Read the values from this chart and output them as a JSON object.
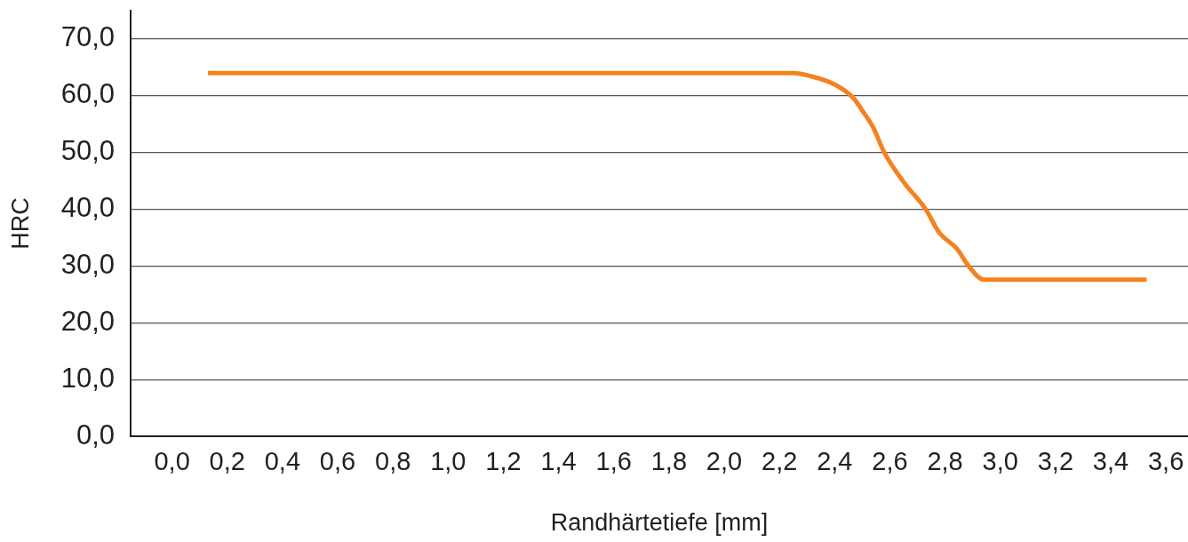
{
  "chart_data": {
    "type": "line",
    "xlabel": "Randhärtetiefe [mm]",
    "ylabel": "HRC",
    "x": [
      0.13,
      2.25,
      2.31,
      2.4,
      2.47,
      2.5,
      2.54,
      2.58,
      2.65,
      2.73,
      2.78,
      2.84,
      2.89,
      2.94,
      3.53
    ],
    "series": [
      {
        "color": "#f58220",
        "values": [
          64,
          64,
          63.5,
          62,
          59.5,
          57.4,
          54.4,
          50,
          44.8,
          40,
          35.8,
          33.2,
          29.7,
          27.6,
          27.6
        ]
      }
    ],
    "xlim": [
      -0.15,
      3.68
    ],
    "xticks": [
      {
        "value": 0,
        "label": "0,0"
      },
      {
        "value": 0.2,
        "label": "0,2"
      },
      {
        "value": 0.4,
        "label": "0,4"
      },
      {
        "value": 0.6,
        "label": "0,6"
      },
      {
        "value": 0.8,
        "label": "0,8"
      },
      {
        "value": 1,
        "label": "1,0"
      },
      {
        "value": 1.2,
        "label": "1,2"
      },
      {
        "value": 1.4,
        "label": "1,4"
      },
      {
        "value": 1.6,
        "label": "1,6"
      },
      {
        "value": 1.8,
        "label": "1,8"
      },
      {
        "value": 2,
        "label": "2,0"
      },
      {
        "value": 2.2,
        "label": "2,2"
      },
      {
        "value": 2.4,
        "label": "2,4"
      },
      {
        "value": 2.6,
        "label": "2,6"
      },
      {
        "value": 2.8,
        "label": "2,8"
      },
      {
        "value": 3,
        "label": "3,0"
      },
      {
        "value": 3.2,
        "label": "3,2"
      },
      {
        "value": 3.4,
        "label": "3,4"
      },
      {
        "value": 3.6,
        "label": "3,6"
      }
    ],
    "ylim": [
      0,
      75
    ],
    "yticks": [
      {
        "value": 0,
        "label": "0,0"
      },
      {
        "value": 10,
        "label": "10,0"
      },
      {
        "value": 20,
        "label": "20,0"
      },
      {
        "value": 30,
        "label": "30,0"
      },
      {
        "value": 40,
        "label": "40,0"
      },
      {
        "value": 50,
        "label": "50,0"
      },
      {
        "value": 60,
        "label": "60,0"
      },
      {
        "value": 70,
        "label": "70,0"
      }
    ],
    "grid": "y",
    "legend": false,
    "marker": "none"
  }
}
